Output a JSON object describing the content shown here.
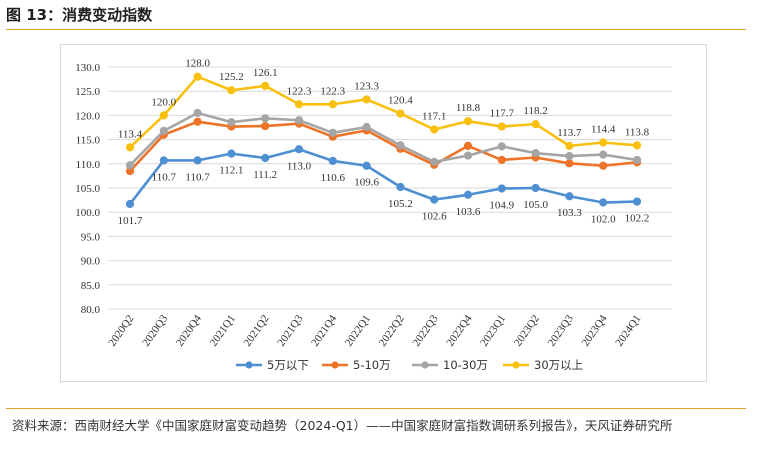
{
  "header": {
    "title": "图 13：消费变动指数"
  },
  "source": {
    "text": "资料来源：西南财经大学《中国家庭财富变动趋势（2024-Q1）——中国家庭财富指数调研系列报告》，天风证券研究所"
  },
  "chart_data": {
    "type": "line",
    "title": "",
    "xlabel": "",
    "ylabel": "",
    "ylim": [
      80.0,
      130.0
    ],
    "yticks": [
      "130.0",
      "125.0",
      "120.0",
      "115.0",
      "110.0",
      "105.0",
      "100.0",
      "95.0",
      "90.0",
      "85.0",
      "80.0"
    ],
    "categories": [
      "2020Q2",
      "2020Q3",
      "2020Q4",
      "2021Q1",
      "2021Q2",
      "2021Q3",
      "2021Q4",
      "2022Q1",
      "2022Q2",
      "2022Q3",
      "2022Q4",
      "2023Q1",
      "2023Q2",
      "2023Q3",
      "2023Q4",
      "2024Q1"
    ],
    "series": [
      {
        "name": "5万以下",
        "color": "#4e8fd1",
        "values": [
          101.7,
          110.7,
          110.7,
          112.1,
          111.2,
          113.0,
          110.6,
          109.6,
          105.2,
          102.6,
          103.6,
          104.9,
          105.0,
          103.3,
          102.0,
          102.2
        ],
        "labels": [
          "101.7",
          "110.7",
          "110.7",
          "112.1",
          "111.2",
          "113.0",
          "110.6",
          "109.6",
          "105.2",
          "102.6",
          "103.6",
          "104.9",
          "105.0",
          "103.3",
          "102.0",
          "102.2"
        ]
      },
      {
        "name": "5-10万",
        "color": "#ed7328",
        "values": [
          108.5,
          116.0,
          118.7,
          117.7,
          117.8,
          118.3,
          115.6,
          116.9,
          113.1,
          109.8,
          113.7,
          110.8,
          111.3,
          110.1,
          109.6,
          110.3
        ]
      },
      {
        "name": "10-30万",
        "color": "#a5a5a5",
        "values": [
          109.7,
          116.8,
          120.5,
          118.6,
          119.4,
          119.0,
          116.4,
          117.6,
          113.8,
          110.4,
          111.7,
          113.6,
          112.2,
          111.6,
          111.9,
          110.8
        ]
      },
      {
        "name": "30万以上",
        "color": "#f9c010",
        "values": [
          113.4,
          120.0,
          128.0,
          125.2,
          126.1,
          122.3,
          122.3,
          123.3,
          120.4,
          117.1,
          118.8,
          117.7,
          118.2,
          113.7,
          114.4,
          113.8
        ],
        "labels": [
          "113.4",
          "120.0",
          "128.0",
          "125.2",
          "126.1",
          "122.3",
          "122.3",
          "123.3",
          "120.4",
          "117.1",
          "118.8",
          "117.7",
          "118.2",
          "113.7",
          "114.4",
          "113.8"
        ]
      }
    ],
    "grid": true,
    "legend": "bottom"
  }
}
